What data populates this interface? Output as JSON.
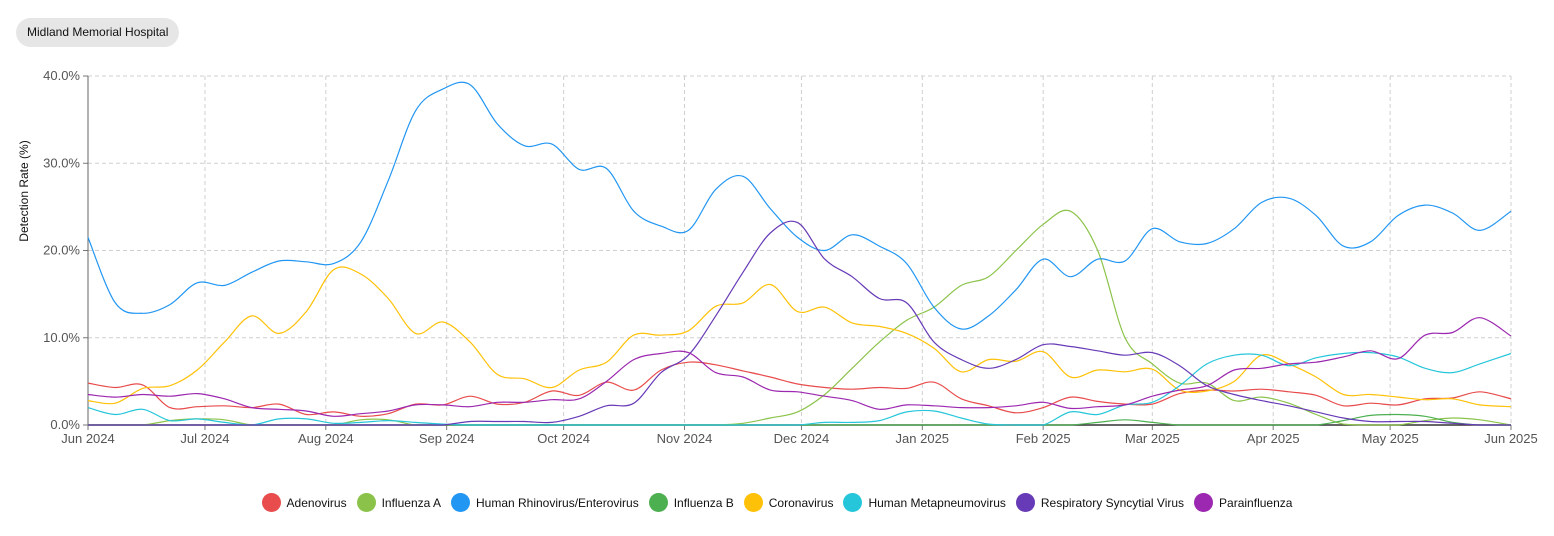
{
  "header": {
    "hospital_label": "Midland Memorial Hospital"
  },
  "chart_data": {
    "type": "line",
    "ylabel": "Detection Rate (%)",
    "xlabel": "",
    "x_ticks": [
      "Jun 2024",
      "Jul 2024",
      "Aug 2024",
      "Sep 2024",
      "Oct 2024",
      "Nov 2024",
      "Dec 2024",
      "Jan 2025",
      "Feb 2025",
      "Mar 2025",
      "Apr 2025",
      "May 2025",
      "Jun 2025"
    ],
    "y_ticks": [
      "0.0%",
      "10.0%",
      "20.0%",
      "30.0%",
      "40.0%"
    ],
    "ylim": [
      0,
      40
    ],
    "x_range": [
      "2024-06-01",
      "2025-06-01"
    ],
    "grid": true,
    "legend_position": "bottom",
    "dates": [
      "2024-06-01",
      "2024-06-08",
      "2024-06-15",
      "2024-06-22",
      "2024-06-29",
      "2024-07-06",
      "2024-07-13",
      "2024-07-20",
      "2024-07-27",
      "2024-08-03",
      "2024-08-10",
      "2024-08-17",
      "2024-08-24",
      "2024-08-31",
      "2024-09-07",
      "2024-09-14",
      "2024-09-21",
      "2024-09-28",
      "2024-10-05",
      "2024-10-12",
      "2024-10-19",
      "2024-10-26",
      "2024-11-02",
      "2024-11-09",
      "2024-11-16",
      "2024-11-23",
      "2024-11-30",
      "2024-12-07",
      "2024-12-14",
      "2024-12-21",
      "2024-12-28",
      "2025-01-04",
      "2025-01-11",
      "2025-01-18",
      "2025-01-25",
      "2025-02-01",
      "2025-02-08",
      "2025-02-15",
      "2025-02-22",
      "2025-03-01",
      "2025-03-08",
      "2025-03-15",
      "2025-03-22",
      "2025-03-29",
      "2025-04-05",
      "2025-04-12",
      "2025-04-19",
      "2025-04-26",
      "2025-05-03",
      "2025-05-10",
      "2025-05-17",
      "2025-05-24",
      "2025-06-01"
    ],
    "series": [
      {
        "name": "Adenovirus",
        "color": "#e84c4c",
        "values": [
          4.8,
          4.3,
          4.6,
          2.0,
          2.1,
          2.2,
          2.0,
          2.4,
          1.2,
          1.5,
          1.0,
          1.3,
          2.4,
          2.3,
          3.3,
          2.4,
          2.6,
          3.9,
          3.4,
          4.9,
          4.0,
          6.3,
          7.2,
          6.9,
          6.2,
          5.5,
          4.7,
          4.3,
          4.1,
          4.3,
          4.2,
          4.9,
          3.0,
          2.2,
          1.4,
          2.0,
          3.2,
          2.7,
          2.4,
          2.4,
          3.6,
          4.0,
          3.9,
          4.1,
          3.8,
          3.4,
          2.2,
          2.5,
          2.3,
          3.0,
          3.1,
          3.8,
          3.0
        ]
      },
      {
        "name": "Influenza A",
        "color": "#8bc34a",
        "values": [
          0.0,
          0.0,
          0.0,
          0.5,
          0.7,
          0.6,
          0.0,
          0.0,
          0.0,
          0.0,
          0.6,
          0.6,
          0.0,
          0.0,
          0.0,
          0.0,
          0.0,
          0.0,
          0.0,
          0.0,
          0.0,
          0.0,
          0.0,
          0.0,
          0.2,
          0.8,
          1.5,
          3.5,
          6.5,
          9.5,
          12.0,
          13.5,
          16.0,
          17.0,
          20.0,
          23.0,
          24.5,
          20.0,
          10.0,
          7.0,
          4.8,
          4.8,
          2.8,
          3.2,
          2.5,
          1.2,
          0.1,
          0.0,
          0.0,
          0.5,
          0.8,
          0.6,
          0.0
        ]
      },
      {
        "name": "Human Rhinovirus/Enterovirus",
        "color": "#2196f3",
        "values": [
          21.5,
          14.0,
          12.8,
          13.8,
          16.3,
          16.0,
          17.5,
          18.8,
          18.7,
          18.5,
          21.0,
          28.0,
          36.0,
          38.5,
          39.0,
          34.5,
          32.0,
          32.2,
          29.3,
          29.4,
          24.5,
          22.8,
          22.3,
          27.0,
          28.5,
          24.8,
          21.5,
          20.0,
          21.8,
          20.5,
          18.5,
          13.5,
          11.0,
          12.5,
          15.5,
          19.0,
          17.0,
          19.0,
          18.8,
          22.5,
          21.0,
          20.8,
          22.5,
          25.5,
          26.0,
          24.0,
          20.5,
          21.0,
          24.0,
          25.2,
          24.3,
          22.3,
          24.5
        ]
      },
      {
        "name": "Influenza B",
        "color": "#4caf50",
        "values": [
          0.0,
          0.0,
          0.0,
          0.0,
          0.0,
          0.0,
          0.0,
          0.0,
          0.0,
          0.0,
          0.0,
          0.0,
          0.0,
          0.0,
          0.0,
          0.0,
          0.0,
          0.0,
          0.0,
          0.0,
          0.0,
          0.0,
          0.0,
          0.0,
          0.0,
          0.0,
          0.0,
          0.0,
          0.0,
          0.0,
          0.0,
          0.0,
          0.0,
          0.0,
          0.0,
          0.0,
          0.0,
          0.3,
          0.6,
          0.3,
          0.0,
          0.0,
          0.0,
          0.0,
          0.0,
          0.0,
          0.5,
          1.1,
          1.2,
          1.0,
          0.3,
          0.0,
          0.0
        ]
      },
      {
        "name": "Coronavirus",
        "color": "#ffc107",
        "values": [
          2.8,
          2.5,
          4.2,
          4.5,
          6.3,
          9.5,
          12.5,
          10.5,
          13.0,
          17.8,
          17.3,
          14.5,
          10.5,
          11.8,
          9.5,
          5.8,
          5.3,
          4.3,
          6.3,
          7.2,
          10.3,
          10.3,
          10.8,
          13.6,
          14.0,
          16.1,
          13.0,
          13.5,
          11.7,
          11.3,
          10.5,
          8.8,
          6.1,
          7.5,
          7.3,
          8.4,
          5.5,
          6.3,
          6.1,
          6.4,
          4.0,
          3.9,
          5.0,
          8.0,
          7.0,
          5.5,
          3.5,
          3.5,
          3.2,
          2.9,
          3.0,
          2.3,
          2.1
        ]
      },
      {
        "name": "Human Metapneumovirus",
        "color": "#26c6da",
        "values": [
          2.0,
          1.2,
          1.8,
          0.5,
          0.7,
          0.3,
          0.0,
          0.7,
          0.7,
          0.2,
          0.3,
          0.5,
          0.3,
          0.1,
          0.0,
          0.0,
          0.0,
          0.0,
          0.0,
          0.0,
          0.0,
          0.0,
          0.0,
          0.0,
          0.0,
          0.0,
          0.0,
          0.3,
          0.3,
          0.5,
          1.5,
          1.6,
          0.8,
          0.1,
          0.0,
          0.0,
          1.5,
          1.2,
          2.3,
          2.6,
          4.5,
          7.0,
          8.0,
          8.0,
          6.8,
          7.7,
          8.2,
          8.3,
          7.8,
          6.5,
          6.0,
          7.0,
          8.2
        ]
      },
      {
        "name": "Respiratory Syncytial Virus",
        "color": "#673ab7",
        "values": [
          0.0,
          0.0,
          0.0,
          0.0,
          0.0,
          0.0,
          0.0,
          0.0,
          0.0,
          0.0,
          0.0,
          0.0,
          0.0,
          0.0,
          0.4,
          0.4,
          0.4,
          0.3,
          1.0,
          2.2,
          2.5,
          6.0,
          8.0,
          12.5,
          17.5,
          22.0,
          23.2,
          19.0,
          17.0,
          14.5,
          14.0,
          9.5,
          7.5,
          6.5,
          7.5,
          9.2,
          9.0,
          8.5,
          8.0,
          8.3,
          6.8,
          4.5,
          3.5,
          2.8,
          2.2,
          1.5,
          0.8,
          0.4,
          0.4,
          0.4,
          0.2,
          0.0,
          0.0
        ]
      },
      {
        "name": "Parainfluenza",
        "color": "#9c27b0",
        "values": [
          3.5,
          3.2,
          3.5,
          3.3,
          3.6,
          3.0,
          2.0,
          1.8,
          1.6,
          1.0,
          1.3,
          1.6,
          2.3,
          2.3,
          2.1,
          2.6,
          2.6,
          2.9,
          3.0,
          5.0,
          7.5,
          8.2,
          8.3,
          6.0,
          5.5,
          4.0,
          3.8,
          3.3,
          2.8,
          1.8,
          2.3,
          2.2,
          2.0,
          2.0,
          2.2,
          2.6,
          1.9,
          2.1,
          2.3,
          3.3,
          4.0,
          4.5,
          6.3,
          6.5,
          7.0,
          7.2,
          7.8,
          8.5,
          7.6,
          10.3,
          10.6,
          12.3,
          10.2
        ]
      }
    ]
  }
}
